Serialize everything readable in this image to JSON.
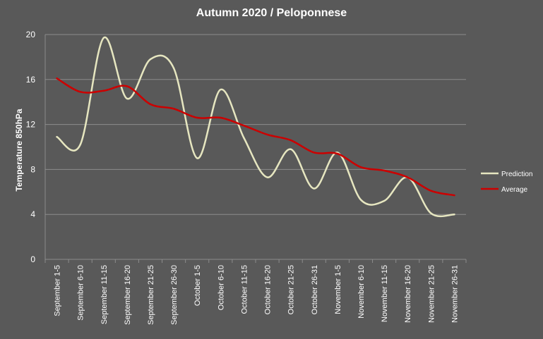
{
  "chart_data": {
    "type": "line",
    "title": "Autumn 2020 / Peloponnese",
    "xlabel": "",
    "ylabel": "Temperature 850hPa",
    "ylim": [
      0,
      20
    ],
    "yticks": [
      0,
      4,
      8,
      12,
      16,
      20
    ],
    "grid": true,
    "legend_position": "right",
    "categories": [
      "September 1-5",
      "September 6-10",
      "September 11-15",
      "September 16-20",
      "September 21-25",
      "September 26-30",
      "October 1-5",
      "October 6-10",
      "October 11-15",
      "October 16-20",
      "October 21-25",
      "October 26-31",
      "November 1-5",
      "November 6-10",
      "November 11-15",
      "November 16-20",
      "November 21-25",
      "November 26-31"
    ],
    "series": [
      {
        "name": "Prediction",
        "color": "#e6e6c0",
        "values": [
          10.9,
          10.2,
          19.7,
          14.3,
          17.8,
          17.0,
          9.0,
          15.1,
          10.8,
          7.3,
          9.8,
          6.3,
          9.5,
          5.3,
          5.2,
          7.3,
          4.1,
          4.0
        ]
      },
      {
        "name": "Average",
        "color": "#cc0000",
        "values": [
          16.1,
          14.9,
          15.0,
          15.4,
          13.8,
          13.4,
          12.6,
          12.6,
          11.9,
          11.1,
          10.6,
          9.5,
          9.4,
          8.2,
          7.9,
          7.3,
          6.1,
          5.7
        ]
      }
    ]
  }
}
